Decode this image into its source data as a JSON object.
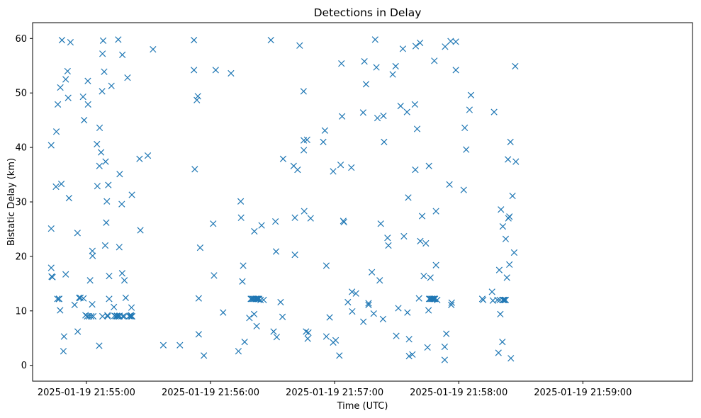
{
  "chart_data": {
    "type": "scatter",
    "title": "Detections in Delay",
    "xlabel": "Time (UTC)",
    "ylabel": "Bistatic Delay (km)",
    "x_unit": "seconds after 2025-01-19 21:54:00 UTC",
    "x_tick_labels": [
      "2025-01-19 21:55:00",
      "2025-01-19 21:56:00",
      "2025-01-19 21:57:00",
      "2025-01-19 21:58:00",
      "2025-01-19 21:59:00"
    ],
    "x_tick_values": [
      60,
      120,
      180,
      240,
      300
    ],
    "xlim": [
      34,
      353
    ],
    "y_ticks": [
      0,
      10,
      20,
      30,
      40,
      50,
      60
    ],
    "ylim": [
      -2.9,
      62.9
    ],
    "marker": "x",
    "color": "#1f77b4",
    "grid": false,
    "points": [
      [
        43.0,
        40.4
      ],
      [
        43.0,
        25.1
      ],
      [
        43.0,
        17.9
      ],
      [
        43.2,
        16.3
      ],
      [
        43.6,
        16.2
      ],
      [
        45.3,
        32.8
      ],
      [
        45.5,
        42.9
      ],
      [
        46.0,
        12.2
      ],
      [
        46.2,
        47.9
      ],
      [
        46.8,
        12.2
      ],
      [
        46.8,
        12.2
      ],
      [
        46.8,
        12.2
      ],
      [
        47.3,
        10.1
      ],
      [
        47.4,
        51.0
      ],
      [
        47.9,
        33.3
      ],
      [
        48.2,
        59.7
      ],
      [
        48.9,
        2.6
      ],
      [
        49.2,
        5.3
      ],
      [
        50.0,
        52.5
      ],
      [
        50.0,
        16.7
      ],
      [
        50.9,
        54.0
      ],
      [
        51.2,
        49.1
      ],
      [
        51.6,
        30.7
      ],
      [
        52.3,
        59.3
      ],
      [
        54.3,
        11.1
      ],
      [
        55.7,
        24.3
      ],
      [
        55.8,
        6.2
      ],
      [
        56.5,
        12.4
      ],
      [
        57.1,
        12.4
      ],
      [
        58.4,
        49.3
      ],
      [
        58.6,
        12.3
      ],
      [
        58.9,
        45.0
      ],
      [
        59.6,
        9.2
      ],
      [
        60.4,
        9.0
      ],
      [
        60.7,
        52.2
      ],
      [
        60.8,
        47.9
      ],
      [
        61.3,
        9.0
      ],
      [
        61.8,
        15.6
      ],
      [
        62.3,
        9.0
      ],
      [
        62.8,
        11.2
      ],
      [
        62.9,
        21.0
      ],
      [
        63.0,
        20.1
      ],
      [
        63.3,
        9.0
      ],
      [
        65.1,
        40.6
      ],
      [
        65.3,
        32.9
      ],
      [
        66.2,
        3.6
      ],
      [
        66.3,
        36.6
      ],
      [
        66.4,
        43.6
      ],
      [
        67.1,
        39.1
      ],
      [
        67.6,
        50.3
      ],
      [
        67.8,
        57.2
      ],
      [
        67.8,
        9.0
      ],
      [
        68.1,
        59.6
      ],
      [
        68.6,
        53.9
      ],
      [
        69.1,
        22.0
      ],
      [
        69.3,
        37.4
      ],
      [
        69.6,
        26.2
      ],
      [
        69.9,
        30.1
      ],
      [
        70.2,
        9.2
      ],
      [
        70.3,
        9.0
      ],
      [
        70.6,
        33.1
      ],
      [
        71.0,
        16.4
      ],
      [
        71.0,
        12.2
      ],
      [
        72.1,
        51.3
      ],
      [
        73.3,
        10.7
      ],
      [
        73.6,
        9.1
      ],
      [
        74.2,
        9.0
      ],
      [
        74.8,
        9.1
      ],
      [
        75.0,
        9.0
      ],
      [
        75.4,
        59.8
      ],
      [
        75.7,
        9.0
      ],
      [
        75.9,
        21.7
      ],
      [
        75.9,
        9.0
      ],
      [
        76.0,
        9.1
      ],
      [
        76.1,
        35.1
      ],
      [
        77.1,
        29.6
      ],
      [
        77.3,
        16.9
      ],
      [
        77.4,
        57.0
      ],
      [
        77.6,
        9.0
      ],
      [
        78.3,
        9.0
      ],
      [
        78.4,
        15.6
      ],
      [
        79.0,
        12.4
      ],
      [
        79.9,
        52.8
      ],
      [
        80.8,
        9.0
      ],
      [
        80.9,
        9.1
      ],
      [
        81.6,
        9.2
      ],
      [
        81.7,
        9.0
      ],
      [
        81.8,
        10.6
      ],
      [
        82.0,
        31.3
      ],
      [
        82.1,
        9.0
      ],
      [
        85.7,
        37.9
      ],
      [
        86.1,
        24.8
      ],
      [
        89.7,
        38.5
      ],
      [
        92.2,
        58.0
      ],
      [
        97.2,
        3.7
      ],
      [
        105.2,
        3.7
      ],
      [
        112.0,
        59.7
      ],
      [
        112.0,
        54.2
      ],
      [
        112.4,
        36.0
      ],
      [
        113.4,
        48.7
      ],
      [
        113.9,
        49.4
      ],
      [
        114.3,
        12.3
      ],
      [
        114.3,
        5.7
      ],
      [
        115.0,
        21.6
      ],
      [
        116.8,
        1.8
      ],
      [
        121.3,
        26.0
      ],
      [
        121.7,
        16.5
      ],
      [
        122.5,
        54.2
      ],
      [
        126.1,
        9.7
      ],
      [
        129.9,
        53.6
      ],
      [
        133.5,
        2.6
      ],
      [
        134.6,
        30.1
      ],
      [
        134.8,
        27.1
      ],
      [
        135.4,
        15.4
      ],
      [
        135.8,
        18.3
      ],
      [
        136.5,
        4.3
      ],
      [
        138.8,
        8.7
      ],
      [
        139.5,
        12.2
      ],
      [
        139.9,
        12.2
      ],
      [
        140.5,
        12.2
      ],
      [
        141.1,
        9.4
      ],
      [
        141.1,
        12.2
      ],
      [
        141.2,
        24.6
      ],
      [
        141.8,
        12.2
      ],
      [
        142.1,
        12.2
      ],
      [
        142.3,
        7.2
      ],
      [
        142.6,
        12.2
      ],
      [
        143.0,
        12.2
      ],
      [
        143.5,
        12.2
      ],
      [
        144.2,
        12.0
      ],
      [
        144.7,
        25.7
      ],
      [
        145.7,
        12.0
      ],
      [
        149.2,
        59.7
      ],
      [
        150.5,
        6.2
      ],
      [
        151.4,
        26.4
      ],
      [
        151.7,
        20.9
      ],
      [
        152.0,
        5.2
      ],
      [
        153.9,
        11.6
      ],
      [
        154.8,
        8.9
      ],
      [
        155.1,
        37.9
      ],
      [
        160.2,
        36.6
      ],
      [
        160.8,
        27.1
      ],
      [
        160.8,
        20.3
      ],
      [
        162.1,
        35.9
      ],
      [
        163.1,
        58.7
      ],
      [
        165.0,
        50.3
      ],
      [
        165.1,
        41.3
      ],
      [
        165.1,
        39.5
      ],
      [
        165.3,
        28.3
      ],
      [
        166.2,
        6.2
      ],
      [
        166.7,
        41.4
      ],
      [
        167.0,
        4.9
      ],
      [
        167.3,
        6.0
      ],
      [
        168.4,
        27.0
      ],
      [
        174.5,
        41.0
      ],
      [
        175.3,
        43.1
      ],
      [
        176.0,
        18.3
      ],
      [
        176.0,
        5.3
      ],
      [
        177.6,
        8.8
      ],
      [
        179.3,
        35.6
      ],
      [
        179.3,
        4.2
      ],
      [
        180.5,
        4.6
      ],
      [
        182.3,
        1.8
      ],
      [
        182.9,
        36.8
      ],
      [
        183.3,
        55.4
      ],
      [
        183.6,
        45.7
      ],
      [
        184.2,
        26.5
      ],
      [
        184.5,
        26.3
      ],
      [
        186.4,
        11.6
      ],
      [
        188.1,
        36.3
      ],
      [
        188.4,
        13.5
      ],
      [
        188.5,
        9.9
      ],
      [
        190.3,
        13.2
      ],
      [
        193.8,
        46.4
      ],
      [
        193.9,
        8.0
      ],
      [
        194.4,
        55.8
      ],
      [
        195.2,
        51.6
      ],
      [
        196.4,
        11.4
      ],
      [
        196.4,
        11.1
      ],
      [
        198.0,
        17.1
      ],
      [
        198.9,
        9.5
      ],
      [
        199.6,
        59.8
      ],
      [
        200.2,
        54.7
      ],
      [
        200.7,
        45.4
      ],
      [
        201.8,
        15.6
      ],
      [
        202.3,
        26.0
      ],
      [
        203.4,
        8.5
      ],
      [
        203.6,
        45.8
      ],
      [
        203.9,
        41.0
      ],
      [
        205.6,
        23.4
      ],
      [
        206.0,
        22.0
      ],
      [
        208.1,
        53.4
      ],
      [
        209.5,
        54.9
      ],
      [
        209.8,
        5.4
      ],
      [
        210.8,
        10.5
      ],
      [
        211.9,
        47.6
      ],
      [
        213.0,
        58.1
      ],
      [
        213.5,
        23.7
      ],
      [
        215.0,
        46.5
      ],
      [
        215.2,
        9.7
      ],
      [
        215.6,
        30.8
      ],
      [
        216.0,
        4.8
      ],
      [
        216.0,
        1.7
      ],
      [
        217.6,
        2.0
      ],
      [
        218.8,
        47.9
      ],
      [
        219.0,
        35.9
      ],
      [
        219.2,
        58.6
      ],
      [
        219.9,
        43.4
      ],
      [
        220.8,
        12.3
      ],
      [
        221.3,
        59.2
      ],
      [
        221.4,
        22.8
      ],
      [
        222.3,
        27.4
      ],
      [
        223.1,
        16.4
      ],
      [
        224.1,
        22.4
      ],
      [
        224.9,
        3.3
      ],
      [
        225.4,
        10.1
      ],
      [
        225.6,
        36.6
      ],
      [
        225.7,
        12.2
      ],
      [
        226.2,
        12.2
      ],
      [
        226.3,
        16.1
      ],
      [
        226.8,
        12.2
      ],
      [
        227.1,
        12.2
      ],
      [
        227.7,
        12.2
      ],
      [
        228.1,
        12.2
      ],
      [
        228.2,
        55.9
      ],
      [
        228.5,
        12.2
      ],
      [
        229.0,
        28.3
      ],
      [
        229.0,
        18.4
      ],
      [
        229.6,
        12.0
      ],
      [
        233.2,
        3.4
      ],
      [
        233.2,
        1.0
      ],
      [
        233.4,
        58.5
      ],
      [
        234.0,
        5.8
      ],
      [
        235.5,
        33.2
      ],
      [
        236.1,
        59.5
      ],
      [
        236.4,
        11.1
      ],
      [
        236.6,
        11.5
      ],
      [
        238.6,
        54.2
      ],
      [
        238.6,
        59.4
      ],
      [
        242.4,
        32.2
      ],
      [
        242.9,
        43.6
      ],
      [
        243.6,
        39.6
      ],
      [
        245.2,
        46.9
      ],
      [
        245.9,
        49.6
      ],
      [
        251.4,
        12.2
      ],
      [
        251.8,
        12.0
      ],
      [
        256.1,
        13.5
      ],
      [
        256.5,
        11.9
      ],
      [
        257.1,
        46.5
      ],
      [
        258.7,
        12.0
      ],
      [
        259.2,
        2.3
      ],
      [
        259.6,
        17.5
      ],
      [
        259.8,
        12.0
      ],
      [
        260.1,
        9.4
      ],
      [
        260.4,
        28.6
      ],
      [
        261.1,
        4.3
      ],
      [
        261.3,
        25.5
      ],
      [
        261.3,
        12.0
      ],
      [
        261.7,
        12.0
      ],
      [
        262.2,
        12.0
      ],
      [
        262.7,
        12.0
      ],
      [
        262.7,
        23.2
      ],
      [
        263.3,
        16.1
      ],
      [
        263.8,
        37.8
      ],
      [
        264.0,
        27.0
      ],
      [
        264.5,
        27.3
      ],
      [
        264.5,
        18.5
      ],
      [
        265.0,
        41.0
      ],
      [
        265.2,
        1.3
      ],
      [
        266.0,
        31.1
      ],
      [
        266.8,
        20.7
      ],
      [
        267.3,
        54.9
      ],
      [
        267.6,
        37.4
      ]
    ]
  }
}
